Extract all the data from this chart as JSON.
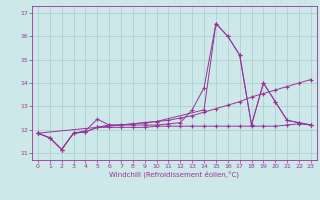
{
  "xlabel": "Windchill (Refroidissement éolien,°C)",
  "background_color": "#cce8e8",
  "grid_color": "#aacccc",
  "line_color": "#993399",
  "xlim": [
    -0.5,
    23.5
  ],
  "ylim": [
    10.7,
    17.3
  ],
  "yticks": [
    11,
    12,
    13,
    14,
    15,
    16,
    17
  ],
  "xticks": [
    0,
    1,
    2,
    3,
    4,
    5,
    6,
    7,
    8,
    9,
    10,
    11,
    12,
    13,
    14,
    15,
    16,
    17,
    18,
    19,
    20,
    21,
    22,
    23
  ],
  "series1_x": [
    0,
    1,
    2,
    3,
    4,
    5,
    6,
    7,
    8,
    9,
    10,
    11,
    12,
    13,
    14,
    15,
    16,
    17,
    18,
    19,
    20,
    21,
    22,
    23
  ],
  "series1_y": [
    11.85,
    11.65,
    11.15,
    11.85,
    11.95,
    12.45,
    12.2,
    12.2,
    12.2,
    12.2,
    12.2,
    12.25,
    12.3,
    12.85,
    13.8,
    16.55,
    16.0,
    15.2,
    12.2,
    14.0,
    13.2,
    12.4,
    12.3,
    12.2
  ],
  "series2_x": [
    0,
    1,
    2,
    3,
    4,
    5,
    6,
    7,
    8,
    9,
    10,
    11,
    12,
    13,
    14,
    15,
    16,
    17,
    18,
    19,
    20,
    21,
    22,
    23
  ],
  "series2_y": [
    11.85,
    11.65,
    11.15,
    11.85,
    11.9,
    12.1,
    12.1,
    12.1,
    12.1,
    12.1,
    12.15,
    12.15,
    12.15,
    12.15,
    12.15,
    12.15,
    12.15,
    12.15,
    12.15,
    12.15,
    12.15,
    12.2,
    12.25,
    12.2
  ],
  "series3_x": [
    0,
    1,
    2,
    3,
    4,
    5,
    6,
    7,
    8,
    9,
    10,
    11,
    12,
    13,
    14,
    15,
    16,
    17,
    18,
    19,
    20,
    21,
    22,
    23
  ],
  "series3_y": [
    11.85,
    11.65,
    11.15,
    11.85,
    11.9,
    12.1,
    12.2,
    12.2,
    12.25,
    12.3,
    12.35,
    12.4,
    12.5,
    12.6,
    12.75,
    12.9,
    13.05,
    13.2,
    13.4,
    13.55,
    13.7,
    13.85,
    14.0,
    14.15
  ],
  "series4_x": [
    0,
    5,
    10,
    14,
    15,
    16,
    17,
    18,
    19,
    20,
    21,
    22,
    23
  ],
  "series4_y": [
    11.85,
    12.1,
    12.35,
    12.85,
    16.55,
    16.0,
    15.2,
    12.2,
    14.0,
    13.2,
    12.4,
    12.3,
    12.2
  ]
}
